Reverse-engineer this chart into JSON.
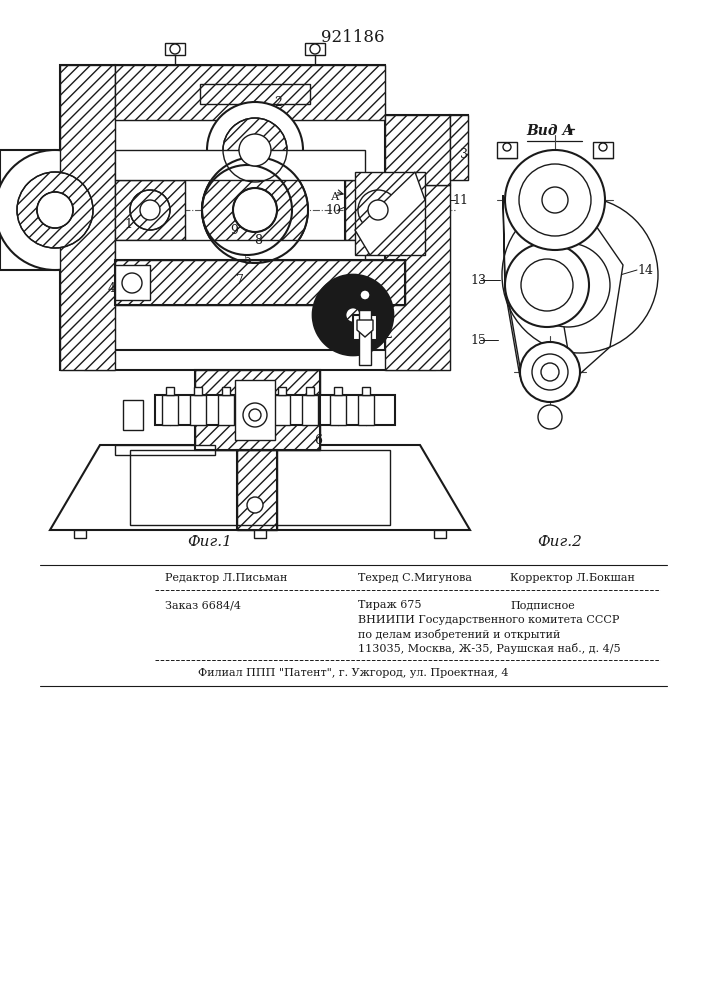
{
  "patent_number": "921186",
  "fig1_caption": "Фиг.1",
  "fig2_caption": "Фиг.2",
  "vid_a_label": "Вид А",
  "background_color": "#ffffff",
  "line_color": "#1a1a1a",
  "footer_line1_left": "Редактор Л.Письман",
  "footer_line1_mid": "Техред С.Мигунова",
  "footer_line1_right": "Корректор Л.Бокшан",
  "footer_line2_left": "Заказ 6684/4",
  "footer_line2_mid": "Тираж 675",
  "footer_line2_right": "Подписное",
  "footer_line3": "ВНИИПИ Государственного комитета СССР",
  "footer_line4": "по делам изобретений и открытий",
  "footer_line5": "113035, Москва, Ж-35, Раушская наб., д. 4/5",
  "footer_line6": "Филиал ППП \"Патент\", г. Ужгород, ул. Проектная, 4"
}
